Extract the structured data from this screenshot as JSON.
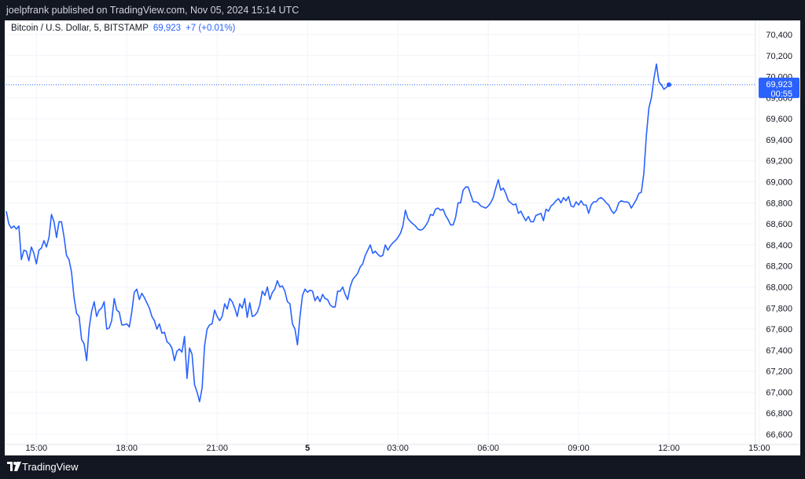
{
  "publisher_line": "joelpfrank published on TradingView.com, Nov 05, 2024 15:14 UTC",
  "legend": {
    "symbol": "Bitcoin / U.S. Dollar, 5, BITSTAMP",
    "price": "69,923",
    "change": "+7 (+0.01%)"
  },
  "price_tag": {
    "price": "69,923",
    "countdown": "00:55"
  },
  "footer": {
    "brand": "TradingView"
  },
  "colors": {
    "line": "#2962ff",
    "background": "#ffffff",
    "frame": "#131722",
    "grid": "#f0f3fa"
  },
  "chart_data": {
    "type": "line",
    "ylim": [
      66600,
      70400
    ],
    "y_ticks": [
      "66,600",
      "66,800",
      "67,000",
      "67,200",
      "67,400",
      "67,600",
      "67,800",
      "68,000",
      "68,200",
      "68,400",
      "68,600",
      "68,800",
      "69,000",
      "69,200",
      "69,400",
      "69,600",
      "69,800",
      "70,000",
      "70,200",
      "70,400"
    ],
    "y_tick_values": [
      66600,
      66800,
      67000,
      67200,
      67400,
      67600,
      67800,
      68000,
      68200,
      68400,
      68600,
      68800,
      69000,
      69200,
      69400,
      69600,
      69800,
      70000,
      70200,
      70400
    ],
    "x_ticks": [
      "15:00",
      "18:00",
      "21:00",
      "5",
      "03:00",
      "06:00",
      "09:00",
      "12:00",
      "15:00"
    ],
    "x_tick_bold": [
      false,
      false,
      false,
      true,
      false,
      false,
      false,
      false,
      false
    ],
    "x_domain": [
      0,
      285
    ],
    "x_tick_positions": [
      12,
      48,
      84,
      120,
      156,
      192,
      228,
      264,
      300
    ],
    "last_price": 69923,
    "series": [
      {
        "values": [
          68720,
          68600,
          68560,
          68580,
          68550,
          68580,
          68260,
          68350,
          68340,
          68250,
          68380,
          68320,
          68220,
          68350,
          68370,
          68440,
          68380,
          68470,
          68690,
          68620,
          68470,
          68620,
          68620,
          68480,
          68300,
          68260,
          68140,
          67900,
          67750,
          67720,
          67500,
          67460,
          67300,
          67610,
          67770,
          67860,
          67720,
          67780,
          67800,
          67860,
          67600,
          67610,
          67680,
          67890,
          67780,
          67760,
          67640,
          67640,
          67650,
          67620,
          67760,
          67950,
          67980,
          67880,
          67940,
          67900,
          67850,
          67800,
          67720,
          67680,
          67600,
          67650,
          67560,
          67570,
          67480,
          67460,
          67420,
          67300,
          67390,
          67410,
          67380,
          67530,
          67130,
          67420,
          67360,
          67070,
          67000,
          66910,
          67040,
          67440,
          67600,
          67640,
          67650,
          67780,
          67720,
          67680,
          67720,
          67840,
          67790,
          67890,
          67860,
          67800,
          67720,
          67840,
          67800,
          67890,
          67710,
          67850,
          67720,
          67730,
          67760,
          67830,
          67960,
          67920,
          68000,
          67880,
          67950,
          67980,
          68060,
          68000,
          68010,
          67960,
          67860,
          67840,
          67650,
          67600,
          67450,
          67720,
          67920,
          67980,
          67950,
          67970,
          67960,
          67870,
          67910,
          67860,
          67930,
          67890,
          67880,
          67830,
          67810,
          67810,
          67960,
          67960,
          68000,
          67930,
          67880,
          68000,
          68070,
          68100,
          68130,
          68190,
          68220,
          68300,
          68350,
          68400,
          68320,
          68340,
          68310,
          68290,
          68300,
          68400,
          68350,
          68390,
          68420,
          68440,
          68470,
          68510,
          68580,
          68730,
          68650,
          68620,
          68600,
          68580,
          68550,
          68540,
          68550,
          68580,
          68620,
          68690,
          68680,
          68740,
          68750,
          68730,
          68740,
          68680,
          68640,
          68590,
          68590,
          68660,
          68800,
          68800,
          68920,
          68950,
          68950,
          68880,
          68810,
          68810,
          68800,
          68770,
          68760,
          68750,
          68770,
          68800,
          68850,
          68940,
          69020,
          68920,
          68940,
          68890,
          68820,
          68800,
          68780,
          68790,
          68700,
          68720,
          68670,
          68630,
          68670,
          68620,
          68620,
          68680,
          68690,
          68700,
          68630,
          68740,
          68720,
          68770,
          68790,
          68820,
          68840,
          68800,
          68850,
          68820,
          68860,
          68770,
          68760,
          68810,
          68780,
          68820,
          68780,
          68780,
          68700,
          68780,
          68810,
          68810,
          68840,
          68850,
          68830,
          68800,
          68780,
          68730,
          68700,
          68730,
          68800,
          68820,
          68810,
          68810,
          68800,
          68750,
          68790,
          68830,
          68890,
          68900,
          69080,
          69440,
          69700,
          69800,
          69980,
          70120,
          69950,
          69920,
          69880,
          69900,
          69923
        ]
      }
    ]
  }
}
